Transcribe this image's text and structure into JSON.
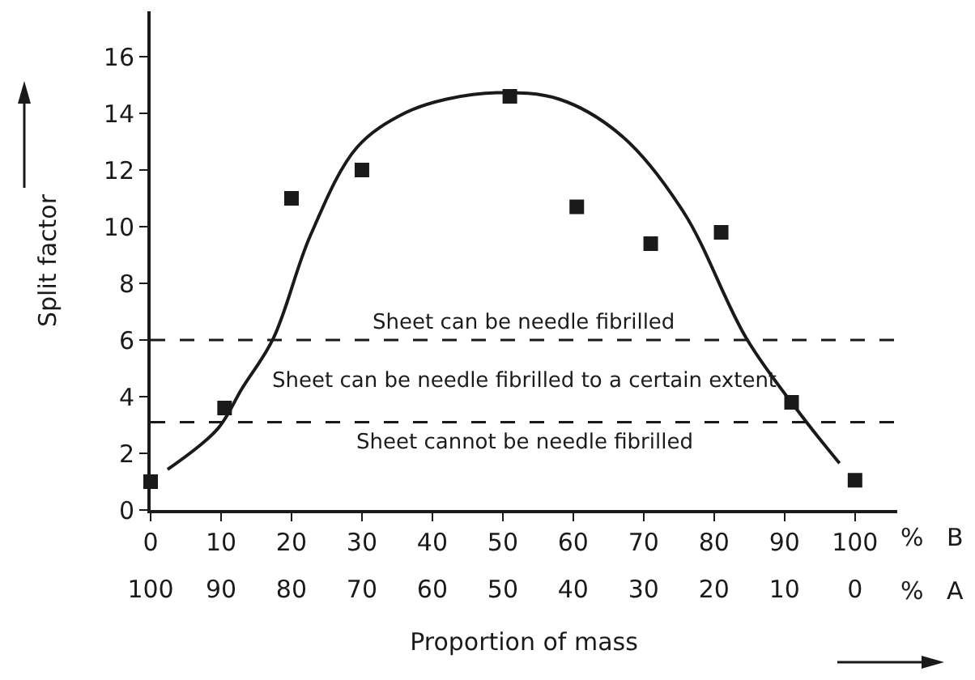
{
  "chart_data": {
    "type": "scatter",
    "ylabel": "Split factor",
    "xlabel": "Proportion of mass",
    "xlim": [
      0,
      106
    ],
    "xticks": [
      0,
      10,
      20,
      30,
      40,
      50,
      60,
      70,
      80,
      90,
      100
    ],
    "x2lim": [
      100,
      -6
    ],
    "x2ticks": [
      100,
      90,
      80,
      70,
      60,
      50,
      40,
      30,
      20,
      10,
      0
    ],
    "ylim": [
      0,
      17.6
    ],
    "yticks": [
      0,
      2,
      4,
      6,
      8,
      10,
      12,
      14,
      16
    ],
    "grid": false,
    "series": [
      {
        "marker": "square",
        "color": "#1a1a1a",
        "x": [
          0,
          10.5,
          20,
          30,
          51,
          60.5,
          71,
          81,
          91,
          100
        ],
        "values": [
          1,
          3.6,
          11,
          12,
          14.6,
          10.7,
          9.4,
          9.8,
          3.8,
          1.05
        ]
      },
      {
        "type": "line",
        "marker": "none",
        "line_style": "solid",
        "color": "#1a1a1a",
        "x": [
          2.4,
          9.5,
          13,
          17.4,
          22.7,
          29.3,
          36,
          42,
          49.2,
          58,
          66.9,
          75.7,
          84.6,
          92.5,
          97.8
        ],
        "values": [
          1.43,
          2.86,
          4.3,
          6.05,
          9.7,
          12.8,
          14,
          14.5,
          14.73,
          14.5,
          13.2,
          10.5,
          6.05,
          3.3,
          1.65
        ]
      }
    ],
    "ref_lines": [
      {
        "axis": "y",
        "value": 6,
        "color": "#1a1a1a",
        "line_style": "dashed",
        "label": "Sheet can be needle fibrilled"
      },
      {
        "axis": "y",
        "value": 3.1,
        "color": "#1a1a1a",
        "line_style": "dashed",
        "label": "Sheet cannot be needle fibrilled"
      }
    ],
    "annotations": [
      "%   B",
      "%   A",
      "Sheet can be needle fibrilled to a certain extent"
    ]
  }
}
